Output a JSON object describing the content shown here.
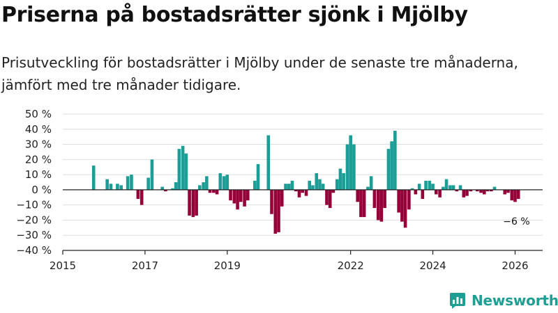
{
  "header": {
    "title": "Priserna på bostadsrätter sjönk i Mjölby",
    "subtitle": "Prisutveckling för bostadsrätter i Mjölby under de senaste tre månaderna, jämfört med tre månader tidigare."
  },
  "brand": {
    "name": "Newsworthy",
    "color": "#1f9e93"
  },
  "colors": {
    "positive": "#1c9e97",
    "negative": "#960039",
    "grid": "#dddddd",
    "axis": "#222222"
  },
  "chart_data": {
    "type": "bar",
    "title": "Priserna på bostadsrätter sjönk i Mjölby",
    "ylabel": "",
    "xlabel": "",
    "ylim": [
      -40,
      50
    ],
    "y_ticks": [
      -40,
      -30,
      -20,
      -10,
      0,
      10,
      20,
      30,
      40,
      50
    ],
    "y_tick_labels": [
      "−40 %",
      "−30 %",
      "−20 %",
      "−10 %",
      "0 %",
      "10 %",
      "20 %",
      "30 %",
      "40 %",
      "50 %"
    ],
    "x_ticks": [
      2015,
      2017,
      2019,
      2022,
      2024,
      2026
    ],
    "x_tick_labels": [
      "2015",
      "2017",
      "2019",
      "2022",
      "2024",
      "2026"
    ],
    "x_range": [
      2015.0,
      2026.67
    ],
    "annotation": {
      "text": "−6 %",
      "x": 2026.0,
      "y": -6
    },
    "series": [
      {
        "name": "Prisutveckling",
        "points": [
          [
            2015.75,
            16
          ],
          [
            2016.08,
            7
          ],
          [
            2016.17,
            4
          ],
          [
            2016.33,
            4
          ],
          [
            2016.42,
            3
          ],
          [
            2016.58,
            9
          ],
          [
            2016.67,
            10
          ],
          [
            2016.83,
            -6
          ],
          [
            2016.92,
            -10
          ],
          [
            2017.08,
            8
          ],
          [
            2017.17,
            20
          ],
          [
            2017.42,
            2
          ],
          [
            2017.5,
            -1
          ],
          [
            2017.67,
            1
          ],
          [
            2017.75,
            5
          ],
          [
            2017.83,
            27
          ],
          [
            2017.92,
            29
          ],
          [
            2018.0,
            24
          ],
          [
            2018.08,
            -17
          ],
          [
            2018.17,
            -18
          ],
          [
            2018.25,
            -17
          ],
          [
            2018.33,
            3
          ],
          [
            2018.42,
            5
          ],
          [
            2018.5,
            9
          ],
          [
            2018.58,
            -2
          ],
          [
            2018.67,
            -2
          ],
          [
            2018.75,
            -3
          ],
          [
            2018.83,
            11
          ],
          [
            2018.92,
            9
          ],
          [
            2019.0,
            10
          ],
          [
            2019.08,
            -7
          ],
          [
            2019.17,
            -9
          ],
          [
            2019.25,
            -13
          ],
          [
            2019.33,
            -8
          ],
          [
            2019.42,
            -11
          ],
          [
            2019.5,
            -7
          ],
          [
            2019.67,
            6
          ],
          [
            2019.75,
            17
          ],
          [
            2020.0,
            36
          ],
          [
            2020.08,
            -16
          ],
          [
            2020.17,
            -29
          ],
          [
            2020.25,
            -28
          ],
          [
            2020.33,
            -11
          ],
          [
            2020.42,
            4
          ],
          [
            2020.5,
            4
          ],
          [
            2020.58,
            6
          ],
          [
            2020.67,
            -1
          ],
          [
            2020.75,
            -5
          ],
          [
            2020.83,
            -2
          ],
          [
            2020.92,
            -4
          ],
          [
            2021.0,
            6
          ],
          [
            2021.08,
            3
          ],
          [
            2021.17,
            11
          ],
          [
            2021.25,
            7
          ],
          [
            2021.33,
            4
          ],
          [
            2021.42,
            -10
          ],
          [
            2021.5,
            -12
          ],
          [
            2021.58,
            -2
          ],
          [
            2021.67,
            7
          ],
          [
            2021.75,
            14
          ],
          [
            2021.83,
            11
          ],
          [
            2021.92,
            30
          ],
          [
            2022.0,
            36
          ],
          [
            2022.08,
            30
          ],
          [
            2022.17,
            -8
          ],
          [
            2022.25,
            -18
          ],
          [
            2022.33,
            -18
          ],
          [
            2022.42,
            2
          ],
          [
            2022.5,
            9
          ],
          [
            2022.58,
            -12
          ],
          [
            2022.67,
            -20
          ],
          [
            2022.75,
            -21
          ],
          [
            2022.83,
            -12
          ],
          [
            2022.92,
            27
          ],
          [
            2023.0,
            32
          ],
          [
            2023.08,
            39
          ],
          [
            2023.17,
            -15
          ],
          [
            2023.25,
            -21
          ],
          [
            2023.33,
            -25
          ],
          [
            2023.42,
            -13
          ],
          [
            2023.5,
            1
          ],
          [
            2023.58,
            -3
          ],
          [
            2023.67,
            4
          ],
          [
            2023.75,
            -6
          ],
          [
            2023.83,
            6
          ],
          [
            2023.92,
            6
          ],
          [
            2024.0,
            4
          ],
          [
            2024.08,
            -3
          ],
          [
            2024.17,
            -5
          ],
          [
            2024.25,
            2
          ],
          [
            2024.33,
            7
          ],
          [
            2024.42,
            3
          ],
          [
            2024.5,
            3
          ],
          [
            2024.58,
            -1
          ],
          [
            2024.67,
            3
          ],
          [
            2024.75,
            -5
          ],
          [
            2024.83,
            -4
          ],
          [
            2024.92,
            -1
          ],
          [
            2025.08,
            -1
          ],
          [
            2025.17,
            -2
          ],
          [
            2025.25,
            -3
          ],
          [
            2025.33,
            -1
          ],
          [
            2025.42,
            -1
          ],
          [
            2025.5,
            2
          ],
          [
            2025.75,
            -3
          ],
          [
            2025.83,
            -2
          ],
          [
            2025.92,
            -7
          ],
          [
            2026.0,
            -8
          ],
          [
            2026.08,
            -6
          ]
        ]
      }
    ]
  }
}
